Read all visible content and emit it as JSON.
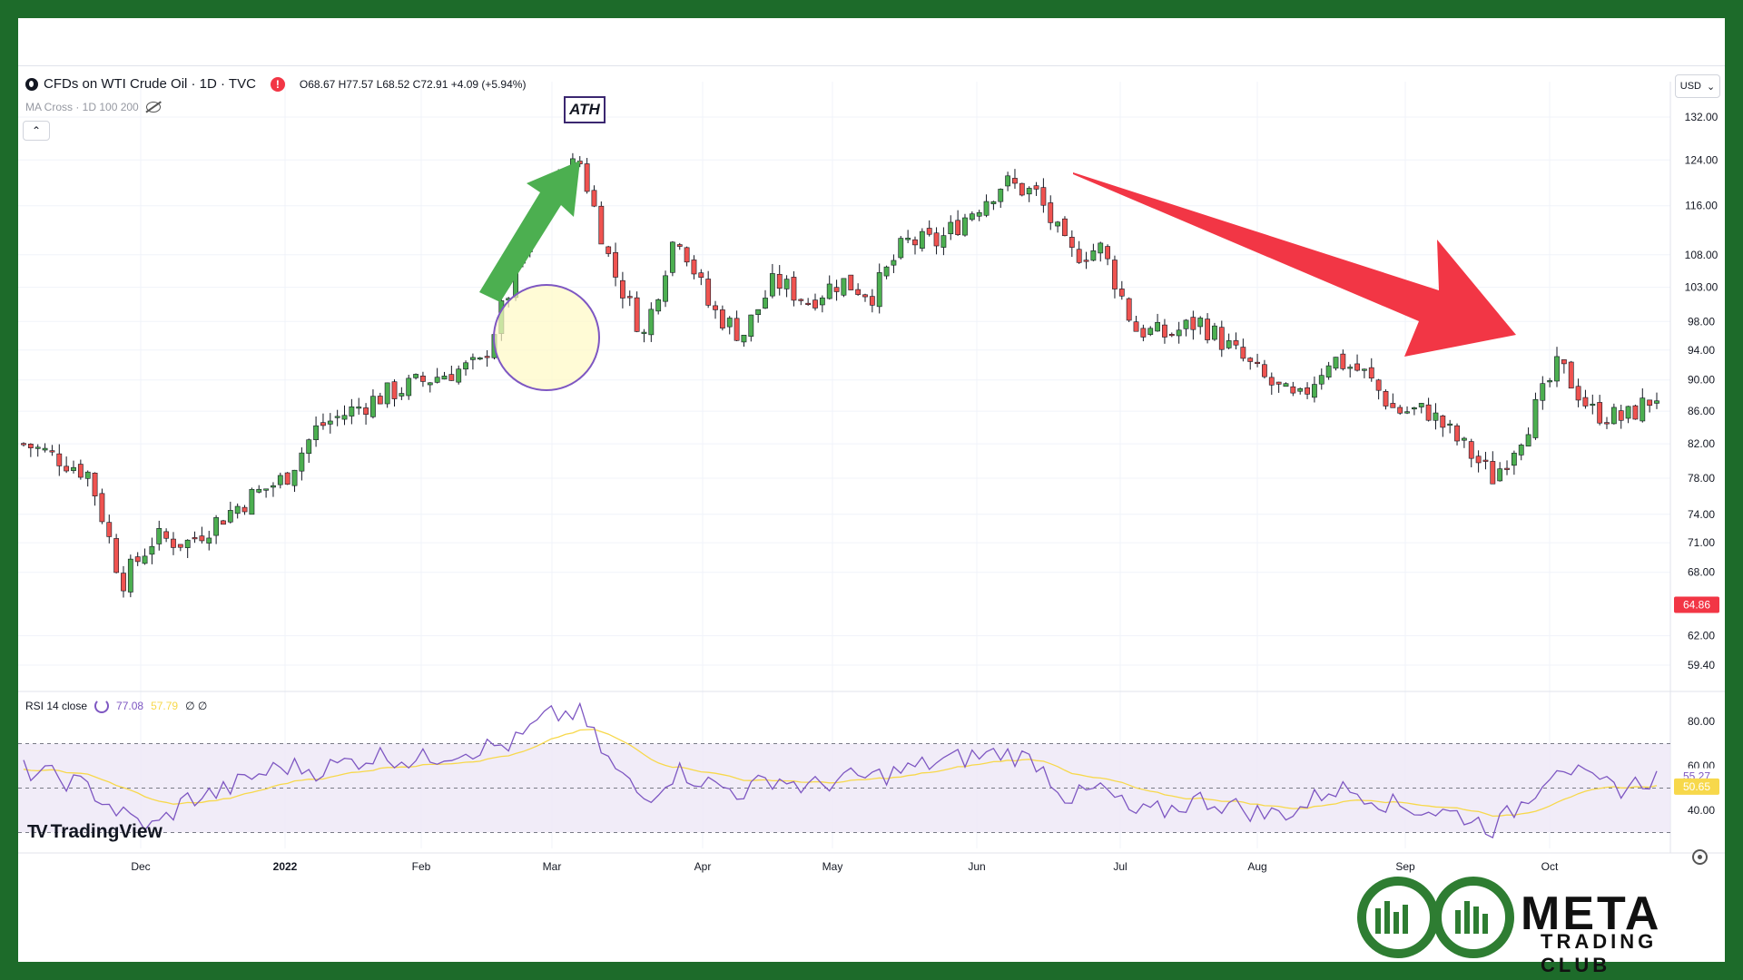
{
  "legend": {
    "symbol": "CFDs on WTI Crude Oil · 1D · TVC",
    "ohlc": "O68.67 H77.57 L68.52 C72.91 +4.09 (+5.94%)",
    "indicator": "MA Cross · 1D 100 200"
  },
  "currency": "USD",
  "annotations": {
    "ath": "ATH"
  },
  "rsi": {
    "label": "RSI 14 close",
    "value": "77.08",
    "ma_value": "57.79",
    "extra": "∅ ∅"
  },
  "branding": {
    "tradingview": "TradingView",
    "brand_name": "META",
    "brand_sub": "TRADING CLUB"
  },
  "colors": {
    "up": "#26a69a",
    "up_visible": "#4caf50",
    "down": "#ef5350",
    "arrow_up": "#4caf50",
    "arrow_down": "#f23645",
    "rsi_line": "#7e57c2",
    "rsi_ma": "#f7d84b",
    "price_tag": "#f23645",
    "rsi_band": "#ede7f6"
  },
  "chart_data": [
    {
      "type": "candlestick",
      "title": "CFDs on WTI Crude Oil · 1D · TVC",
      "x_ticks": [
        "Dec",
        "2022",
        "Feb",
        "Mar",
        "Apr",
        "May",
        "Jun",
        "Jul",
        "Aug",
        "Sep",
        "Oct"
      ],
      "y_ticks": [
        "132.00",
        "124.00",
        "116.00",
        "108.00",
        "103.00",
        "98.00",
        "94.00",
        "90.00",
        "86.00",
        "82.00",
        "78.00",
        "74.00",
        "71.00",
        "68.00",
        "62.00",
        "59.40"
      ],
      "y_scale": "log",
      "last_price_tag": "64.86",
      "series": [
        {
          "name": "",
          "points": [
            {
              "date": "Nov 8",
              "value": 82.0
            },
            {
              "date": "Nov 16",
              "value": 80.5
            },
            {
              "date": "Nov 24",
              "value": 78.5
            },
            {
              "date": "Dec 1",
              "value": 67.0
            },
            {
              "date": "Dec 8",
              "value": 71.5
            },
            {
              "date": "Dec 16",
              "value": 71.0
            },
            {
              "date": "Dec 24",
              "value": 73.5
            },
            {
              "date": "Jan 1",
              "value": 76.0
            },
            {
              "date": "Jan 8",
              "value": 78.0
            },
            {
              "date": "Jan 16",
              "value": 84.0
            },
            {
              "date": "Jan 24",
              "value": 86.0
            },
            {
              "date": "Feb 1",
              "value": 88.0
            },
            {
              "date": "Feb 8",
              "value": 89.5
            },
            {
              "date": "Feb 16",
              "value": 91.0
            },
            {
              "date": "Feb 24",
              "value": 92.0
            },
            {
              "date": "Mar 1",
              "value": 104.0
            },
            {
              "date": "Mar 4",
              "value": 118.0
            },
            {
              "date": "Mar 7",
              "value": 124.0
            },
            {
              "date": "Mar 10",
              "value": 106.0
            },
            {
              "date": "Mar 16",
              "value": 96.0
            },
            {
              "date": "Mar 24",
              "value": 112.0
            },
            {
              "date": "Apr 1",
              "value": 100.0
            },
            {
              "date": "Apr 8",
              "value": 96.0
            },
            {
              "date": "Apr 16",
              "value": 104.0
            },
            {
              "date": "Apr 24",
              "value": 101.0
            },
            {
              "date": "May 1",
              "value": 104.0
            },
            {
              "date": "May 8",
              "value": 102.0
            },
            {
              "date": "May 16",
              "value": 110.0
            },
            {
              "date": "May 24",
              "value": 110.0
            },
            {
              "date": "Jun 1",
              "value": 115.0
            },
            {
              "date": "Jun 8",
              "value": 120.0
            },
            {
              "date": "Jun 14",
              "value": 118.0
            },
            {
              "date": "Jun 20",
              "value": 108.0
            },
            {
              "date": "Jun 28",
              "value": 109.0
            },
            {
              "date": "Jul 6",
              "value": 97.0
            },
            {
              "date": "Jul 14",
              "value": 96.0
            },
            {
              "date": "Jul 22",
              "value": 98.0
            },
            {
              "date": "Aug 1",
              "value": 94.0
            },
            {
              "date": "Aug 8",
              "value": 90.0
            },
            {
              "date": "Aug 16",
              "value": 87.0
            },
            {
              "date": "Aug 24",
              "value": 93.0
            },
            {
              "date": "Aug 30",
              "value": 91.0
            },
            {
              "date": "Sep 6",
              "value": 86.0
            },
            {
              "date": "Sep 14",
              "value": 86.0
            },
            {
              "date": "Sep 22",
              "value": 82.0
            },
            {
              "date": "Sep 27",
              "value": 78.0
            },
            {
              "date": "Oct 3",
              "value": 84.0
            },
            {
              "date": "Oct 7",
              "value": 92.0
            },
            {
              "date": "Oct 14",
              "value": 86.0
            },
            {
              "date": "Oct 21",
              "value": 85.0
            },
            {
              "date": "Oct 26",
              "value": 88.0
            }
          ]
        }
      ]
    },
    {
      "type": "line",
      "title": "RSI 14 close",
      "y_ticks": [
        "80.00",
        "60.00",
        "40.00"
      ],
      "value_tags": [
        "55.27",
        "50.65"
      ],
      "series": [
        {
          "name": "RSI",
          "values": [
            58,
            55,
            50,
            38,
            32,
            45,
            48,
            55,
            60,
            58,
            62,
            65,
            62,
            66,
            68,
            70,
            82,
            84,
            60,
            45,
            58,
            52,
            48,
            55,
            50,
            54,
            55,
            58,
            62,
            64,
            66,
            62,
            45,
            50,
            38,
            40,
            45,
            42,
            38,
            40,
            50,
            48,
            42,
            40,
            38,
            32,
            45,
            62,
            52,
            50,
            55
          ]
        }
      ]
    }
  ]
}
